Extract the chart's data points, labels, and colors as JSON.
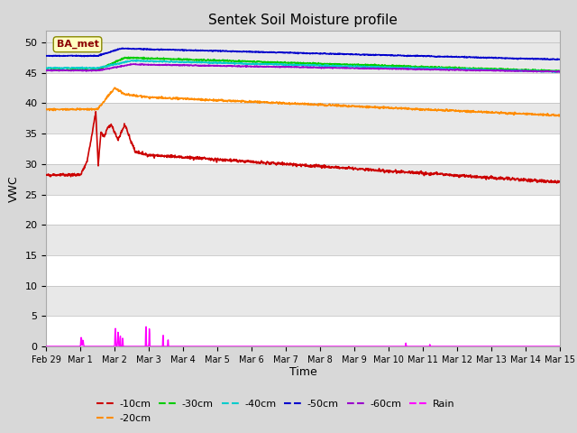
{
  "title": "Sentek Soil Moisture profile",
  "xlabel": "Time",
  "ylabel": "VWC",
  "legend_label": "BA_met",
  "ylim": [
    0,
    52
  ],
  "yticks": [
    0,
    5,
    10,
    15,
    20,
    25,
    30,
    35,
    40,
    45,
    50
  ],
  "background_color": "#d8d8d8",
  "plot_bg_color": "#e8e8e8",
  "series": {
    "-10cm": {
      "color": "#cc0000",
      "lw": 1.2
    },
    "-20cm": {
      "color": "#ff8c00",
      "lw": 1.2
    },
    "-30cm": {
      "color": "#00cc00",
      "lw": 1.2
    },
    "-40cm": {
      "color": "#00cccc",
      "lw": 1.2
    },
    "-50cm": {
      "color": "#0000cc",
      "lw": 1.2
    },
    "-60cm": {
      "color": "#9900cc",
      "lw": 1.2
    },
    "Rain": {
      "color": "#ff00ff",
      "lw": 1.0
    }
  },
  "xtick_labels": [
    "Feb 29",
    "Mar 1",
    "Mar 2",
    "Mar 3",
    "Mar 4",
    "Mar 5",
    "Mar 6",
    "Mar 7",
    "Mar 8",
    "Mar 9",
    "Mar 9",
    "Mar 10",
    "Mar 11",
    "Mar 12",
    "Mar 13",
    "Mar 14",
    "Mar 15"
  ],
  "n_days": 15,
  "pts_per_day": 96
}
